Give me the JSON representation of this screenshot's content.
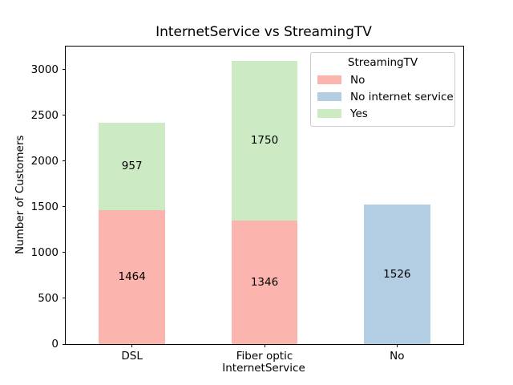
{
  "chart_data": {
    "type": "bar",
    "stacked": true,
    "title": "InternetService vs StreamingTV",
    "xlabel": "InternetService",
    "ylabel": "Number of Customers",
    "categories": [
      "DSL",
      "Fiber optic",
      "No"
    ],
    "series": [
      {
        "name": "No",
        "color": "#fbb4ae",
        "values": [
          1464,
          1346,
          0
        ]
      },
      {
        "name": "No internet service",
        "color": "#b3cde3",
        "values": [
          0,
          0,
          1526
        ]
      },
      {
        "name": "Yes",
        "color": "#ccebc5",
        "values": [
          957,
          1750,
          0
        ]
      }
    ],
    "yticks": [
      0,
      500,
      1000,
      1500,
      2000,
      2500,
      3000
    ],
    "ylim": [
      0,
      3250
    ],
    "bar_width_fraction": 0.5,
    "grid": false,
    "legend": {
      "title": "StreamingTV",
      "position": "upper right"
    }
  },
  "colors": {
    "background": "#ffffff",
    "axis": "#000000",
    "text": "#000000",
    "legend_border": "#cccccc"
  }
}
